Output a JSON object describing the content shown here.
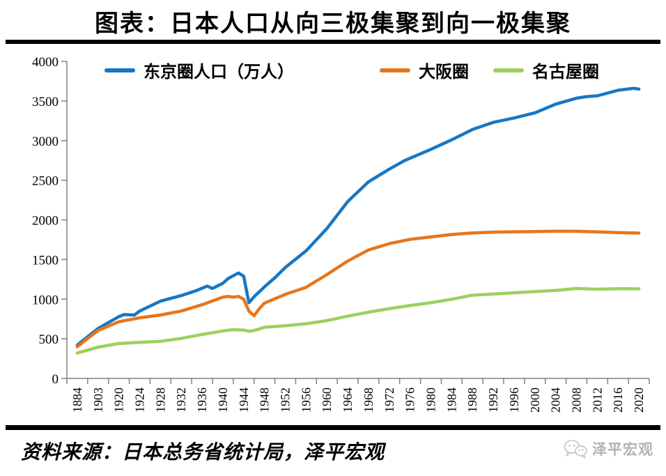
{
  "header": {
    "title": "图表：日本人口从向三极集聚到向一极集聚"
  },
  "footer": {
    "source": "资料来源：日本总务省统计局，泽平宏观",
    "watermark": "泽平宏观",
    "watermark_icon": "wechat-bubbles-icon",
    "watermark_color": "#b3b3b3"
  },
  "chart_data": {
    "type": "line",
    "title": "图表：日本人口从向三极集聚到向一极集聚",
    "xlabel": "",
    "ylabel": "",
    "ylim": [
      0,
      4000
    ],
    "y_ticks": [
      0,
      500,
      1000,
      1500,
      2000,
      2500,
      3000,
      3500,
      4000
    ],
    "x_tick_labels": [
      "1884",
      "1903",
      "1920",
      "1924",
      "1928",
      "1932",
      "1936",
      "1940",
      "1944",
      "1948",
      "1952",
      "1956",
      "1960",
      "1964",
      "1968",
      "1972",
      "1976",
      "1980",
      "1984",
      "1988",
      "1992",
      "1996",
      "2000",
      "2004",
      "2008",
      "2012",
      "2016",
      "2020"
    ],
    "grid": false,
    "legend_position": "top",
    "axis_color": "#808080",
    "unit": "万人",
    "series": [
      {
        "name": "东京圈人口（万人）",
        "color": "#1777C4",
        "points": [
          [
            1884,
            420
          ],
          [
            1903,
            630
          ],
          [
            1920,
            780
          ],
          [
            1921,
            805
          ],
          [
            1923,
            800
          ],
          [
            1924,
            850
          ],
          [
            1928,
            975
          ],
          [
            1932,
            1045
          ],
          [
            1935,
            1110
          ],
          [
            1937,
            1165
          ],
          [
            1938,
            1135
          ],
          [
            1940,
            1200
          ],
          [
            1941,
            1260
          ],
          [
            1943,
            1330
          ],
          [
            1944,
            1290
          ],
          [
            1945,
            955
          ],
          [
            1946,
            1030
          ],
          [
            1948,
            1155
          ],
          [
            1950,
            1270
          ],
          [
            1952,
            1400
          ],
          [
            1956,
            1610
          ],
          [
            1960,
            1890
          ],
          [
            1964,
            2230
          ],
          [
            1968,
            2480
          ],
          [
            1972,
            2640
          ],
          [
            1975,
            2750
          ],
          [
            1980,
            2890
          ],
          [
            1984,
            3010
          ],
          [
            1988,
            3140
          ],
          [
            1992,
            3230
          ],
          [
            1996,
            3285
          ],
          [
            2000,
            3350
          ],
          [
            2004,
            3460
          ],
          [
            2008,
            3535
          ],
          [
            2010,
            3555
          ],
          [
            2012,
            3565
          ],
          [
            2016,
            3635
          ],
          [
            2019,
            3660
          ],
          [
            2020,
            3650
          ]
        ]
      },
      {
        "name": "大阪圈",
        "color": "#E8761B",
        "points": [
          [
            1884,
            400
          ],
          [
            1903,
            605
          ],
          [
            1920,
            715
          ],
          [
            1924,
            765
          ],
          [
            1928,
            800
          ],
          [
            1932,
            850
          ],
          [
            1936,
            930
          ],
          [
            1940,
            1025
          ],
          [
            1941,
            1035
          ],
          [
            1942,
            1025
          ],
          [
            1943,
            1035
          ],
          [
            1944,
            1000
          ],
          [
            1945,
            850
          ],
          [
            1946,
            790
          ],
          [
            1947,
            880
          ],
          [
            1948,
            950
          ],
          [
            1952,
            1060
          ],
          [
            1956,
            1150
          ],
          [
            1960,
            1310
          ],
          [
            1964,
            1480
          ],
          [
            1968,
            1620
          ],
          [
            1972,
            1700
          ],
          [
            1976,
            1755
          ],
          [
            1980,
            1785
          ],
          [
            1984,
            1815
          ],
          [
            1988,
            1835
          ],
          [
            1992,
            1845
          ],
          [
            1996,
            1850
          ],
          [
            2000,
            1852
          ],
          [
            2004,
            1858
          ],
          [
            2008,
            1856
          ],
          [
            2012,
            1848
          ],
          [
            2016,
            1840
          ],
          [
            2020,
            1833
          ]
        ]
      },
      {
        "name": "名古屋圈",
        "color": "#9CD05F",
        "points": [
          [
            1884,
            320
          ],
          [
            1903,
            395
          ],
          [
            1920,
            440
          ],
          [
            1924,
            455
          ],
          [
            1928,
            468
          ],
          [
            1932,
            505
          ],
          [
            1936,
            555
          ],
          [
            1940,
            600
          ],
          [
            1942,
            615
          ],
          [
            1944,
            610
          ],
          [
            1945,
            595
          ],
          [
            1946,
            605
          ],
          [
            1948,
            645
          ],
          [
            1952,
            665
          ],
          [
            1956,
            690
          ],
          [
            1960,
            730
          ],
          [
            1964,
            785
          ],
          [
            1968,
            835
          ],
          [
            1972,
            880
          ],
          [
            1976,
            920
          ],
          [
            1980,
            955
          ],
          [
            1984,
            1000
          ],
          [
            1988,
            1050
          ],
          [
            1992,
            1065
          ],
          [
            1996,
            1080
          ],
          [
            2000,
            1095
          ],
          [
            2004,
            1110
          ],
          [
            2008,
            1135
          ],
          [
            2012,
            1125
          ],
          [
            2016,
            1132
          ],
          [
            2020,
            1130
          ]
        ]
      }
    ],
    "source_note": "资料来源：日本总务省统计局，泽平宏观"
  }
}
